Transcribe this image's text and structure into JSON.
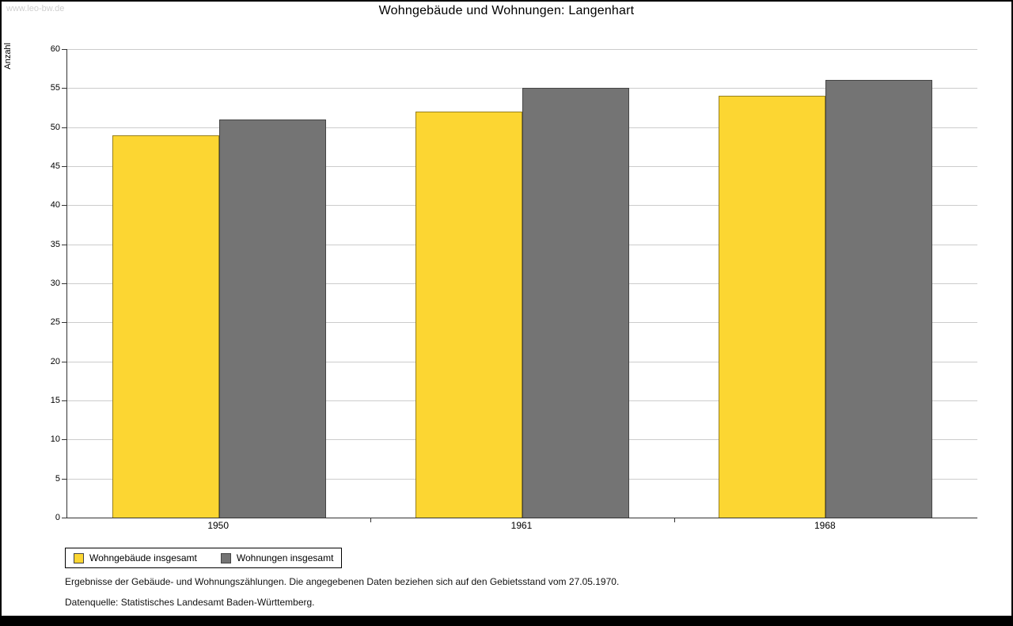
{
  "watermark": "www.leo-bw.de",
  "title": "Wohngebäude und Wohnungen: Langenhart",
  "footnotes": {
    "line1": "Ergebnisse der Gebäude- und Wohnungszählungen. Die angegebenen Daten beziehen sich auf den Gebietsstand vom 27.05.1970.",
    "line2": "Datenquelle: Statistisches Landesamt Baden-Württemberg."
  },
  "colors": {
    "grid": "#cccccc",
    "axis": "#333333",
    "series1": "#fcd632",
    "series2": "#747474"
  },
  "chart_data": {
    "type": "bar",
    "title": "Wohngebäude und Wohnungen: Langenhart",
    "categories": [
      "1950",
      "1961",
      "1968"
    ],
    "series": [
      {
        "name": "Wohngebäude insgesamt",
        "color": "#fcd632",
        "values": [
          49,
          52,
          54
        ]
      },
      {
        "name": "Wohnungen insgesamt",
        "color": "#747474",
        "values": [
          51,
          55,
          56
        ]
      }
    ],
    "xlabel": "",
    "ylabel": "Anzahl",
    "ylim": [
      0,
      60
    ],
    "ytick_step": 5,
    "grid": true,
    "legend_position": "bottom-left"
  }
}
